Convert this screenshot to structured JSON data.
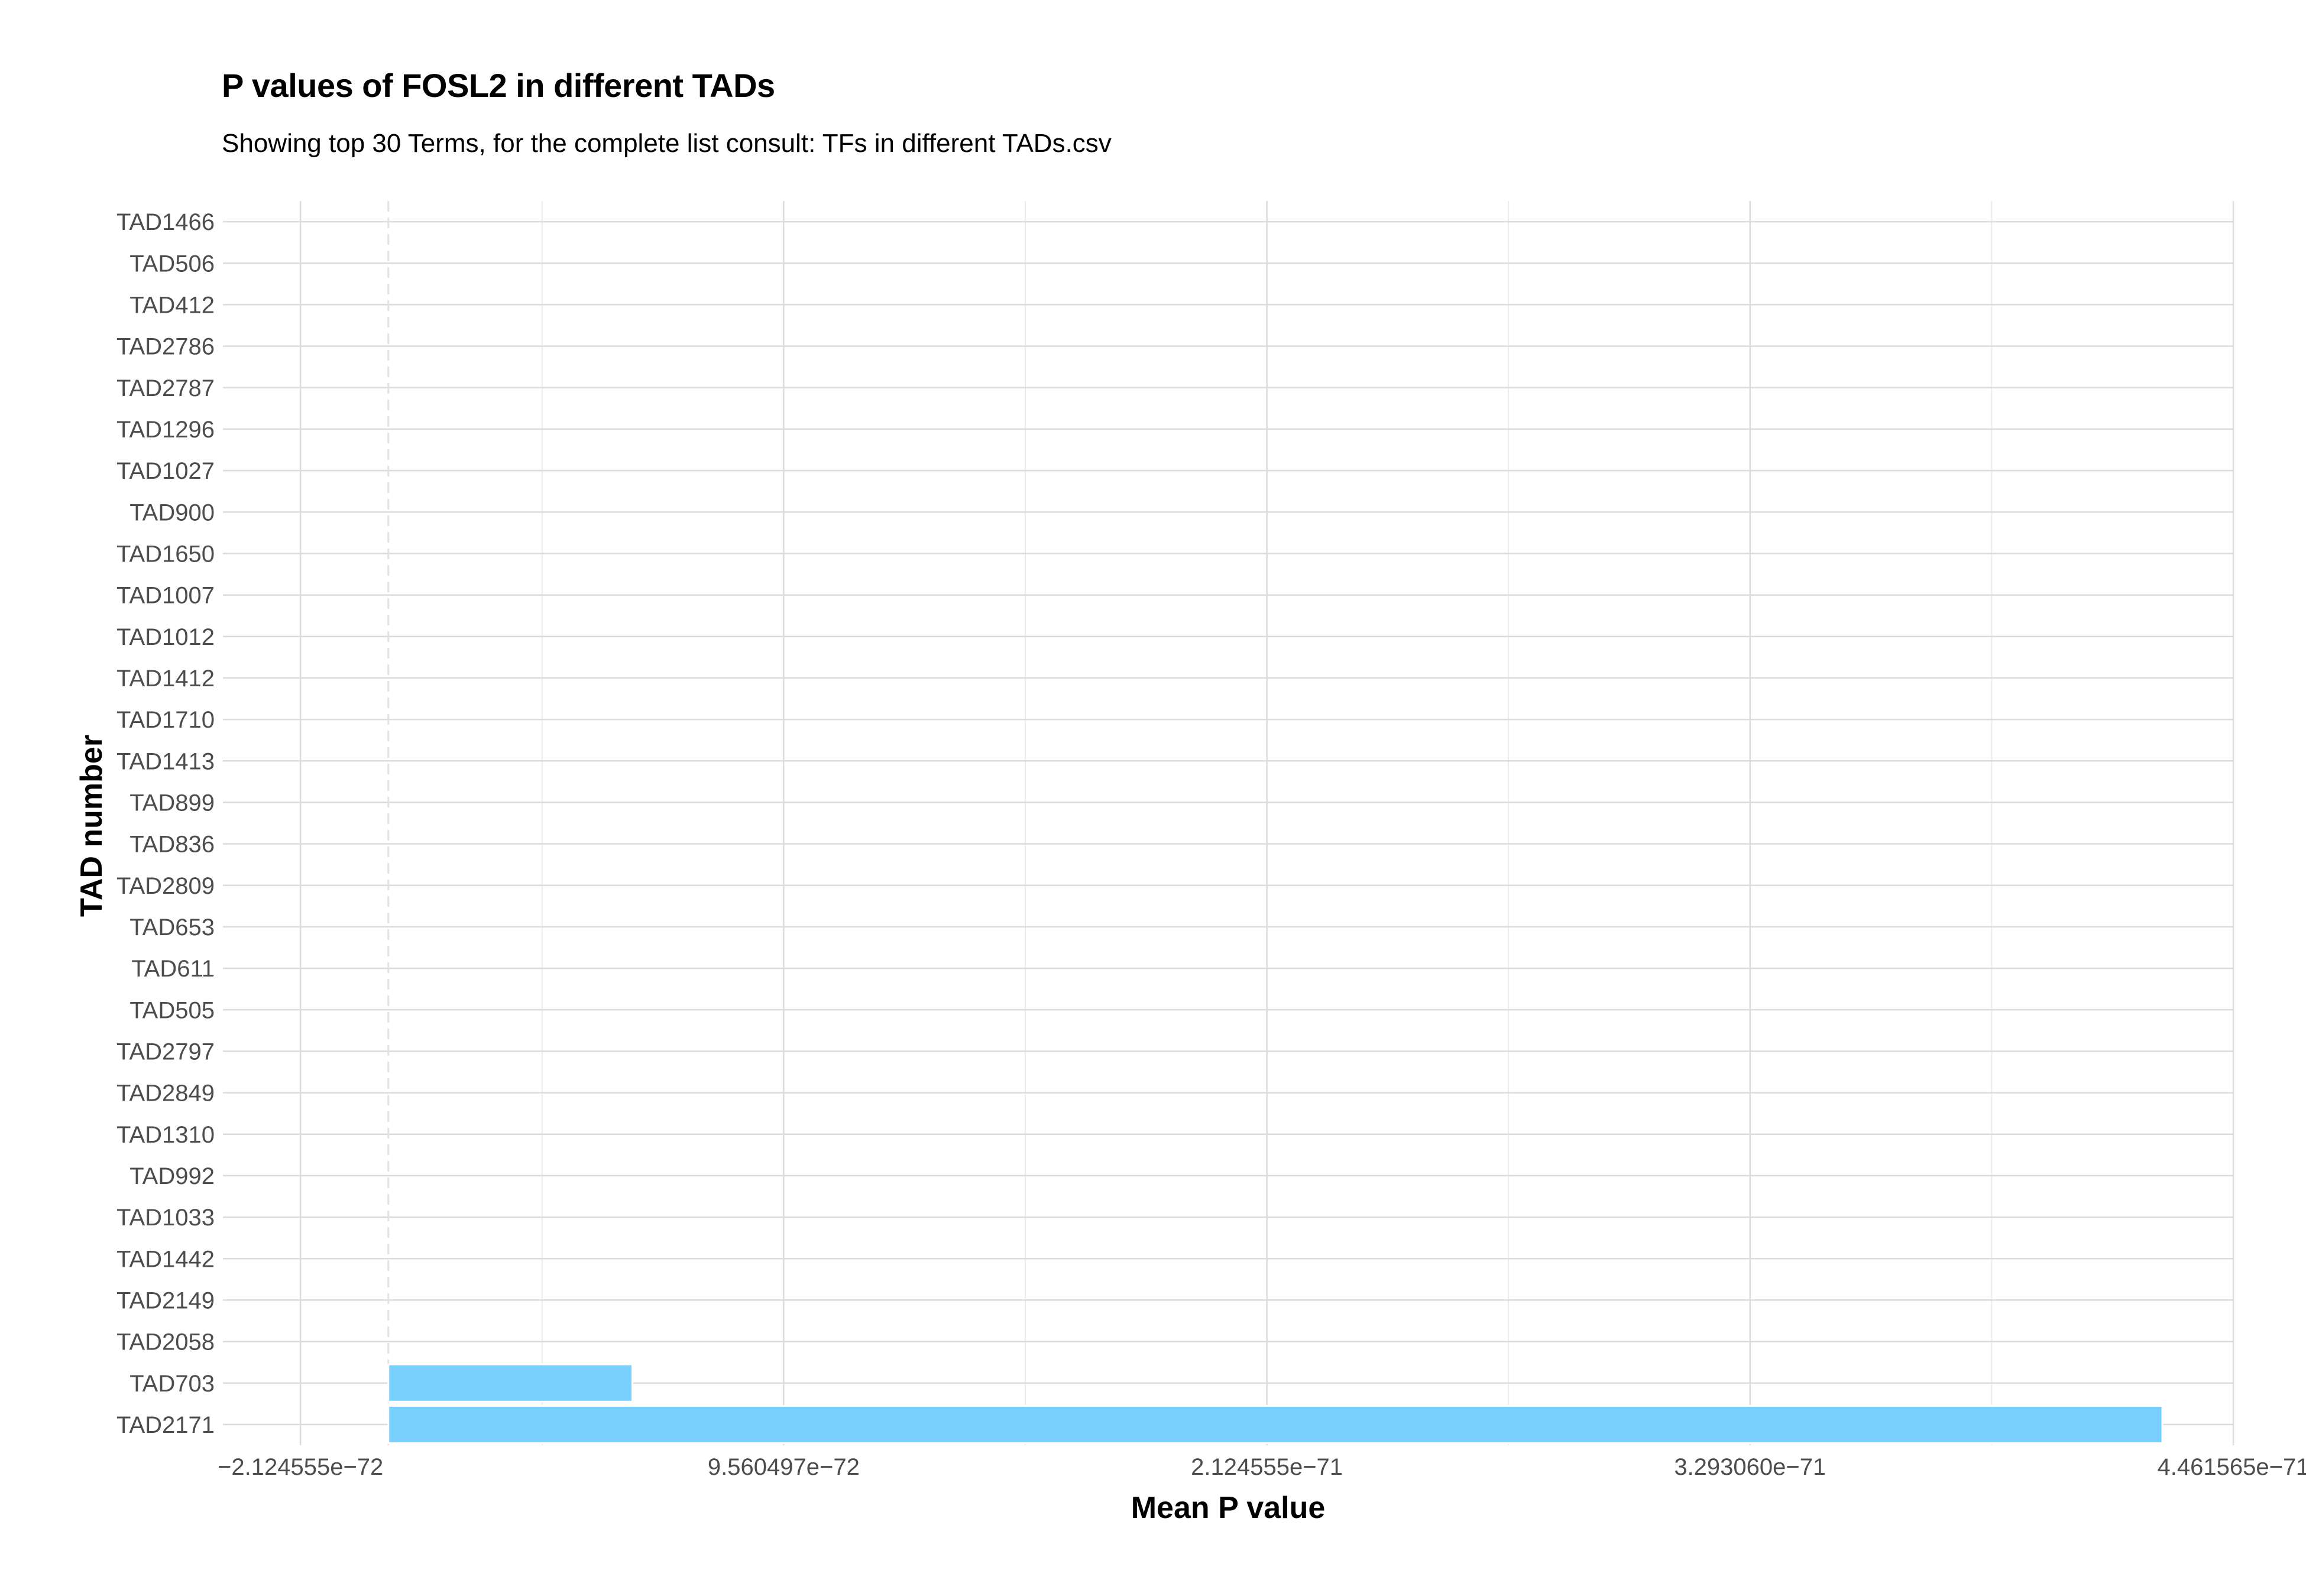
{
  "chart_data": {
    "type": "bar",
    "orientation": "horizontal",
    "title": "P values of FOSL2 in different TADs",
    "subtitle": "Showing top 30 Terms, for the complete list consult: TFs in different TADs.csv",
    "xlabel": "Mean P value",
    "ylabel": "TAD number",
    "categories": [
      "TAD2171",
      "TAD703",
      "TAD2058",
      "TAD2149",
      "TAD1442",
      "TAD1033",
      "TAD992",
      "TAD1310",
      "TAD2849",
      "TAD2797",
      "TAD505",
      "TAD611",
      "TAD653",
      "TAD2809",
      "TAD836",
      "TAD899",
      "TAD1413",
      "TAD1710",
      "TAD1412",
      "TAD1012",
      "TAD1007",
      "TAD1650",
      "TAD900",
      "TAD1027",
      "TAD1296",
      "TAD2787",
      "TAD2786",
      "TAD412",
      "TAD506",
      "TAD1466"
    ],
    "values": [
      4.29e-71,
      5.9e-72,
      0,
      0,
      0,
      0,
      0,
      0,
      0,
      0,
      0,
      0,
      0,
      0,
      0,
      0,
      0,
      0,
      0,
      0,
      0,
      0,
      0,
      0,
      0,
      0,
      0,
      0,
      0,
      0
    ],
    "xlim": [
      -4e-72,
      4.461565e-71
    ],
    "x_ticks": [
      -2.124555e-72,
      9.560497e-72,
      2.124555e-71,
      3.29306e-71,
      4.461565e-71
    ],
    "x_tick_labels": [
      "−2.124555e−72",
      "9.560497e−72",
      "2.124555e−71",
      "3.293060e−71",
      "4.461565e−71"
    ],
    "bar_color": "#79CFFB",
    "grid": true,
    "theme": "minimal"
  }
}
